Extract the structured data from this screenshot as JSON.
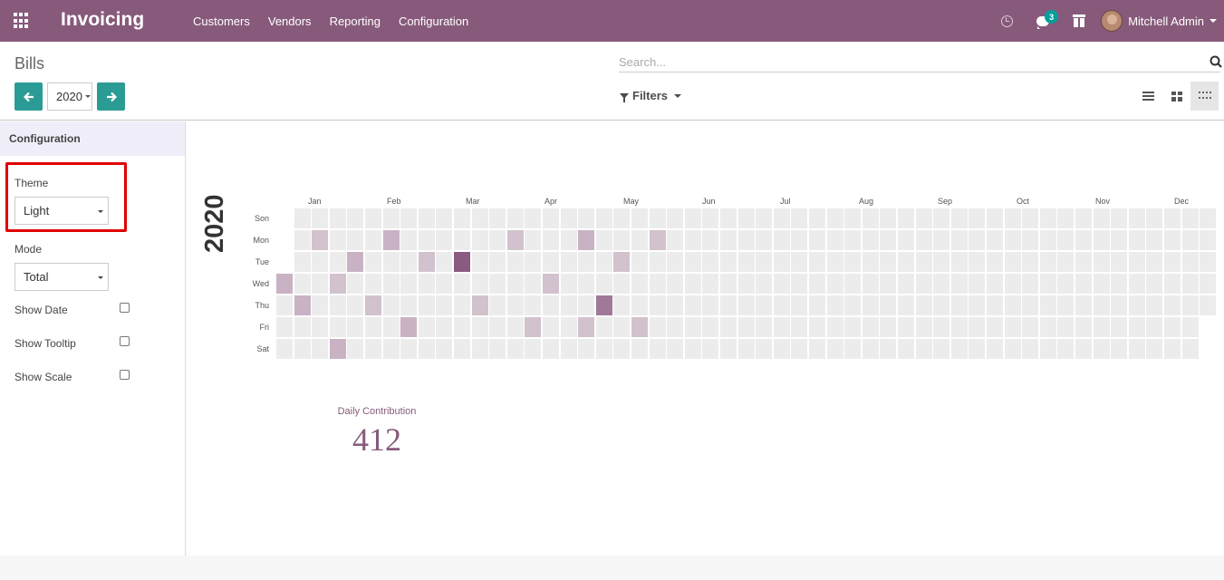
{
  "navbar": {
    "app_name": "Invoicing",
    "menu": [
      "Customers",
      "Vendors",
      "Reporting",
      "Configuration"
    ],
    "chat_badge": "3",
    "user_name": "Mitchell Admin",
    "brand_color": "#875a7b"
  },
  "control_panel": {
    "breadcrumb": "Bills",
    "year": "2020",
    "search_placeholder": "Search...",
    "filters_label": "Filters",
    "accent_color": "#2b9c95"
  },
  "sidebar": {
    "title": "Configuration",
    "theme_label": "Theme",
    "theme_value": "Light",
    "mode_label": "Mode",
    "mode_value": "Total",
    "show_date_label": "Show Date",
    "show_date_checked": false,
    "show_tooltip_label": "Show Tooltip",
    "show_tooltip_checked": false,
    "show_scale_label": "Show Scale",
    "show_scale_checked": false
  },
  "heatmap": {
    "year": "2020",
    "months": [
      "Jan",
      "Feb",
      "Mar",
      "Apr",
      "May",
      "Jun",
      "Jul",
      "Aug",
      "Sep",
      "Oct",
      "Nov",
      "Dec"
    ],
    "days": [
      "Son",
      "Mon",
      "Tue",
      "Wed",
      "Thu",
      "Fri",
      "Sat"
    ],
    "levels": {
      "1": "#d1c2cd",
      "2": "#c9b2c3",
      "3": "#a07898",
      "4": "#8a5a80"
    },
    "empty_color": "#ececec",
    "active_cells": [
      {
        "week": 2,
        "day": 1,
        "level": 1
      },
      {
        "week": 6,
        "day": 1,
        "level": 2
      },
      {
        "week": 13,
        "day": 1,
        "level": 1
      },
      {
        "week": 17,
        "day": 1,
        "level": 2
      },
      {
        "week": 21,
        "day": 1,
        "level": 1
      },
      {
        "week": 4,
        "day": 2,
        "level": 2
      },
      {
        "week": 8,
        "day": 2,
        "level": 1
      },
      {
        "week": 10,
        "day": 2,
        "level": 4
      },
      {
        "week": 19,
        "day": 2,
        "level": 1
      },
      {
        "week": 0,
        "day": 3,
        "level": 2
      },
      {
        "week": 3,
        "day": 3,
        "level": 1
      },
      {
        "week": 15,
        "day": 3,
        "level": 1
      },
      {
        "week": 1,
        "day": 4,
        "level": 2
      },
      {
        "week": 5,
        "day": 4,
        "level": 1
      },
      {
        "week": 11,
        "day": 4,
        "level": 1
      },
      {
        "week": 18,
        "day": 4,
        "level": 3
      },
      {
        "week": 7,
        "day": 5,
        "level": 2
      },
      {
        "week": 14,
        "day": 5,
        "level": 1
      },
      {
        "week": 17,
        "day": 5,
        "level": 1
      },
      {
        "week": 20,
        "day": 5,
        "level": 1
      },
      {
        "week": 3,
        "day": 6,
        "level": 2
      }
    ],
    "contribution_label": "Daily Contribution",
    "contribution_value": "412"
  }
}
